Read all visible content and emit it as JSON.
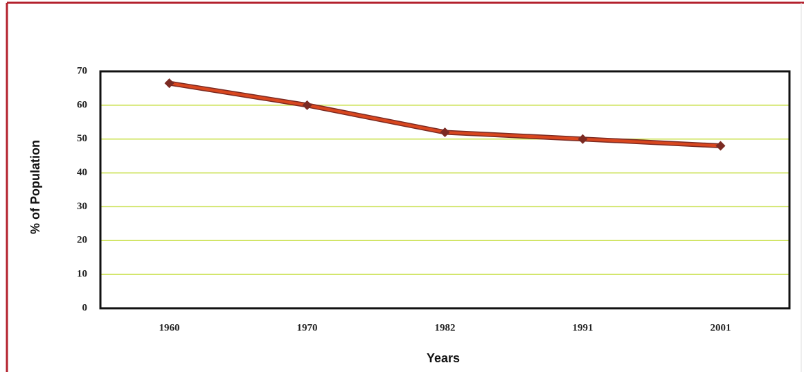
{
  "chart_data": {
    "type": "line",
    "x_label": "Years",
    "y_label": "% of Population",
    "categories": [
      "1960",
      "1970",
      "1982",
      "1991",
      "2001"
    ],
    "values": [
      66.5,
      60,
      52,
      50,
      48
    ],
    "color": "#d9471f",
    "marker_color": "#7b2a22",
    "ylim": [
      0,
      70
    ],
    "yticks": [
      0,
      10,
      20,
      30,
      40,
      50,
      60,
      70
    ],
    "grid": true,
    "grid_color": "#c9e04c"
  }
}
